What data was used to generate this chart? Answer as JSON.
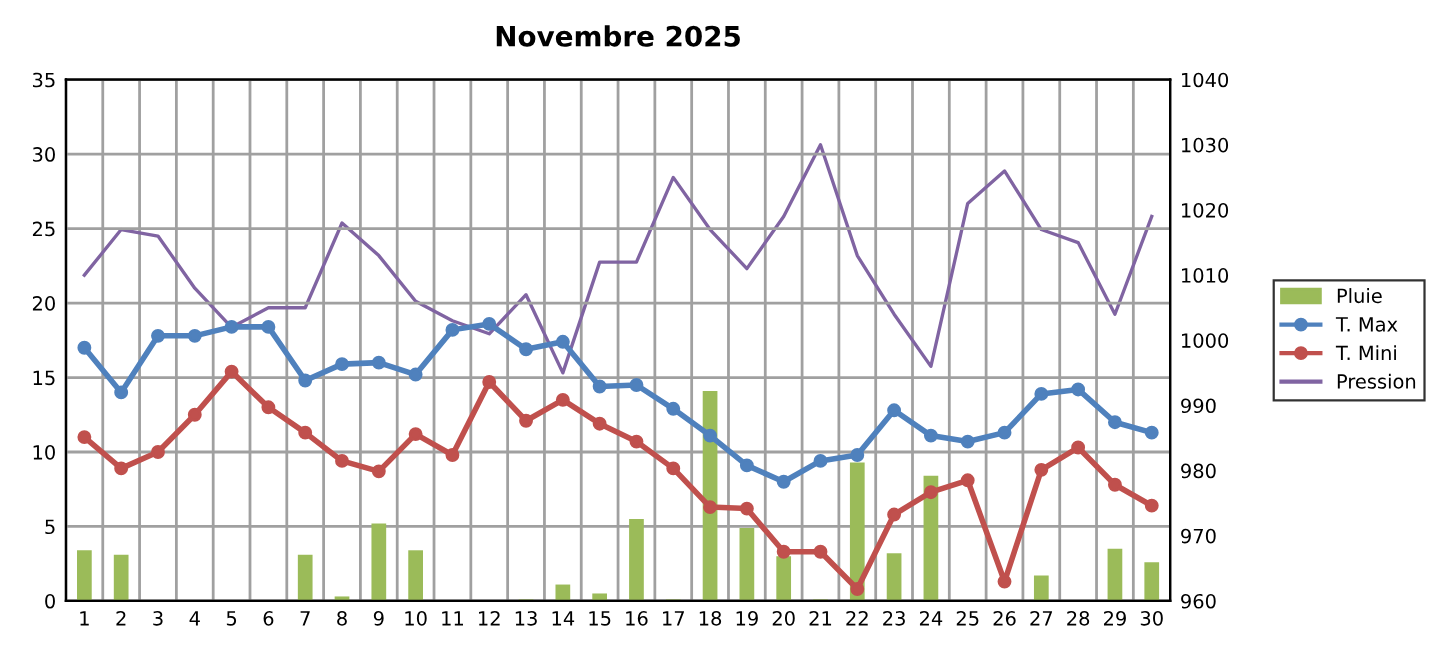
{
  "chart_data": {
    "type": "line",
    "title": "Novembre 2025",
    "categories": [
      "1",
      "2",
      "3",
      "4",
      "5",
      "6",
      "7",
      "8",
      "9",
      "10",
      "11",
      "12",
      "13",
      "14",
      "15",
      "16",
      "17",
      "18",
      "19",
      "20",
      "21",
      "22",
      "23",
      "24",
      "25",
      "26",
      "27",
      "28",
      "29",
      "30"
    ],
    "series": [
      {
        "name": "Pluie",
        "type": "bar",
        "color": "#9bbb59",
        "values": [
          3.4,
          3.1,
          0,
          0,
          0,
          0,
          3.1,
          0.3,
          5.2,
          3.4,
          0,
          0,
          0.1,
          1.1,
          0.5,
          5.5,
          0.1,
          14.1,
          4.9,
          3.0,
          0.1,
          9.3,
          3.2,
          8.4,
          0,
          0,
          1.7,
          0,
          3.5,
          2.6
        ]
      },
      {
        "name": "T. Max",
        "marker": "circle",
        "color": "#4f81bd",
        "values": [
          17.0,
          14.0,
          17.8,
          17.8,
          18.4,
          18.4,
          14.8,
          15.9,
          16.0,
          15.2,
          18.2,
          18.6,
          16.9,
          17.4,
          14.4,
          14.5,
          12.9,
          11.1,
          9.1,
          8.0,
          9.4,
          9.8,
          12.8,
          11.1,
          10.7,
          11.3,
          13.9,
          14.2,
          12.0,
          11.3
        ]
      },
      {
        "name": "T. Mini",
        "marker": "circle",
        "color": "#c0504d",
        "values": [
          11.0,
          8.9,
          10.0,
          12.5,
          15.4,
          13.0,
          11.3,
          9.4,
          8.7,
          11.2,
          9.8,
          14.7,
          12.1,
          13.5,
          11.9,
          10.7,
          8.9,
          6.3,
          6.2,
          3.3,
          3.3,
          0.8,
          5.8,
          7.3,
          8.1,
          1.3,
          8.8,
          10.3,
          7.8,
          6.4
        ]
      },
      {
        "name": "Pression",
        "axis": "y2",
        "color": "#8064a2",
        "values": [
          1010,
          1017,
          1016,
          1008,
          1002,
          1005,
          1005,
          1018,
          1013,
          1006,
          1003,
          1001,
          1007,
          995,
          1012,
          1012,
          1025,
          1017,
          1011,
          1019,
          1030,
          1013,
          1004,
          996,
          1021,
          1026,
          1017,
          1015,
          1004,
          1019
        ]
      }
    ],
    "ylim": [
      0,
      35
    ],
    "yticks": [
      0,
      5,
      10,
      15,
      20,
      25,
      30,
      35
    ],
    "y2lim": [
      960,
      1040
    ],
    "y2ticks": [
      960,
      970,
      980,
      990,
      1000,
      1010,
      1020,
      1030,
      1040
    ],
    "grid": true,
    "legend": "right"
  }
}
